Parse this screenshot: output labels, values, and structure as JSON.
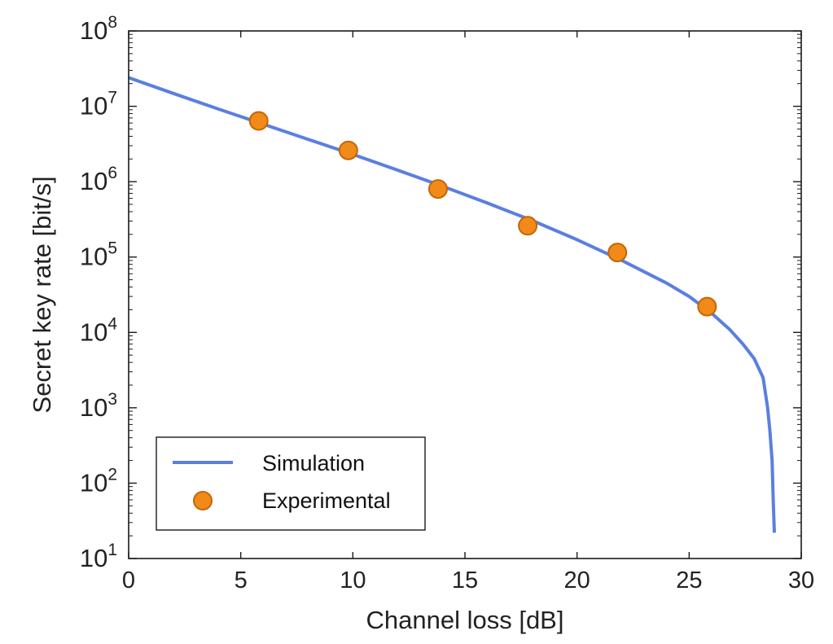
{
  "chart_data": {
    "type": "line",
    "title": "",
    "xlabel": "Channel loss [dB]",
    "ylabel": "Secret key rate [bit/s]",
    "xlim": [
      0,
      30
    ],
    "ylim": [
      10,
      100000000
    ],
    "yscale": "log",
    "x_ticks": [
      0,
      5,
      10,
      15,
      20,
      25,
      30
    ],
    "x_tick_labels": [
      "0",
      "5",
      "10",
      "15",
      "20",
      "25",
      "30"
    ],
    "y_ticks": [
      {
        "value": 10,
        "base": "10",
        "exp": "1"
      },
      {
        "value": 100,
        "base": "10",
        "exp": "2"
      },
      {
        "value": 1000,
        "base": "10",
        "exp": "3"
      },
      {
        "value": 10000,
        "base": "10",
        "exp": "4"
      },
      {
        "value": 100000,
        "base": "10",
        "exp": "5"
      },
      {
        "value": 1000000,
        "base": "10",
        "exp": "6"
      },
      {
        "value": 10000000,
        "base": "10",
        "exp": "7"
      },
      {
        "value": 100000000,
        "base": "10",
        "exp": "8"
      }
    ],
    "grid": false,
    "legend_position": "bottom-left",
    "series": [
      {
        "name": "Simulation",
        "kind": "line",
        "color": "#5b7fe0",
        "x": [
          0,
          2,
          4,
          6,
          8,
          10,
          12,
          14,
          16,
          18,
          20,
          22,
          24,
          25,
          26,
          26.8,
          27.4,
          27.9,
          28.3,
          28.5,
          28.6,
          28.7,
          28.75,
          28.8
        ],
        "y": [
          24000000,
          14800000,
          9200000,
          5800000,
          3650000,
          2300000,
          1420000,
          870000,
          520000,
          305000,
          170000,
          90000,
          45000,
          30000,
          18000,
          11000,
          7000,
          4500,
          2500,
          1000,
          500,
          200,
          60,
          22
        ]
      },
      {
        "name": "Experimental",
        "kind": "scatter",
        "color": "#f28a1a",
        "edge_color": "#c46508",
        "x": [
          5.8,
          9.8,
          13.8,
          17.8,
          21.8,
          25.8
        ],
        "y": [
          6400000,
          2600000,
          800000,
          260000,
          115000,
          22000
        ]
      }
    ]
  }
}
